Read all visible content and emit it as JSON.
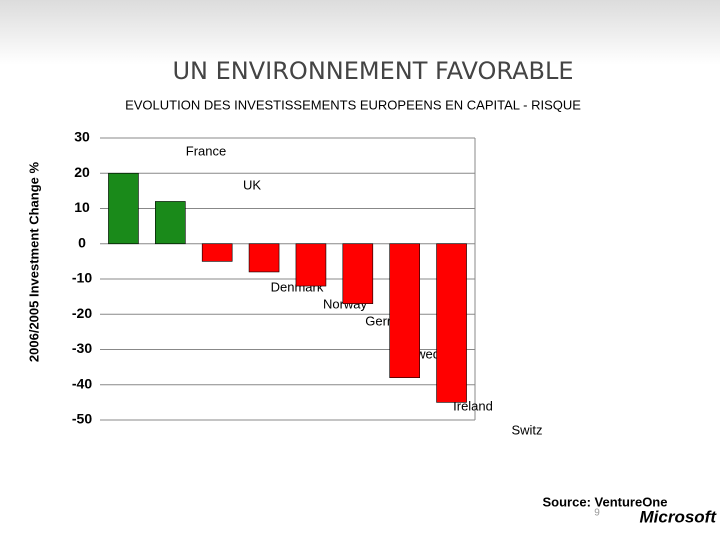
{
  "chart_data": {
    "type": "bar",
    "title": "UN ENVIRONNEMENT FAVORABLE",
    "subtitle": "EVOLUTION DES INVESTISSEMENTS EUROPEENS EN CAPITAL - RISQUE",
    "y_label": "2006/2005 Investment Change %",
    "categories": [
      "France",
      "UK",
      "Denmark",
      "Norway",
      "Germany",
      "Sweden",
      "Ireland",
      "Switz"
    ],
    "values": [
      20,
      12,
      -5,
      -8,
      -12,
      -17,
      -38,
      -45
    ],
    "colors": [
      "#1a8a1a",
      "#1a8a1a",
      "#ff0000",
      "#ff0000",
      "#ff0000",
      "#ff0000",
      "#ff0000",
      "#ff0000"
    ],
    "ylim": [
      -50,
      30
    ],
    "yticks": [
      -50,
      -40,
      -30,
      -20,
      -10,
      0,
      10,
      20,
      30
    ],
    "grid": true,
    "source": "Source: VentureOne",
    "page_number": "9",
    "logo": "Microsoft"
  }
}
